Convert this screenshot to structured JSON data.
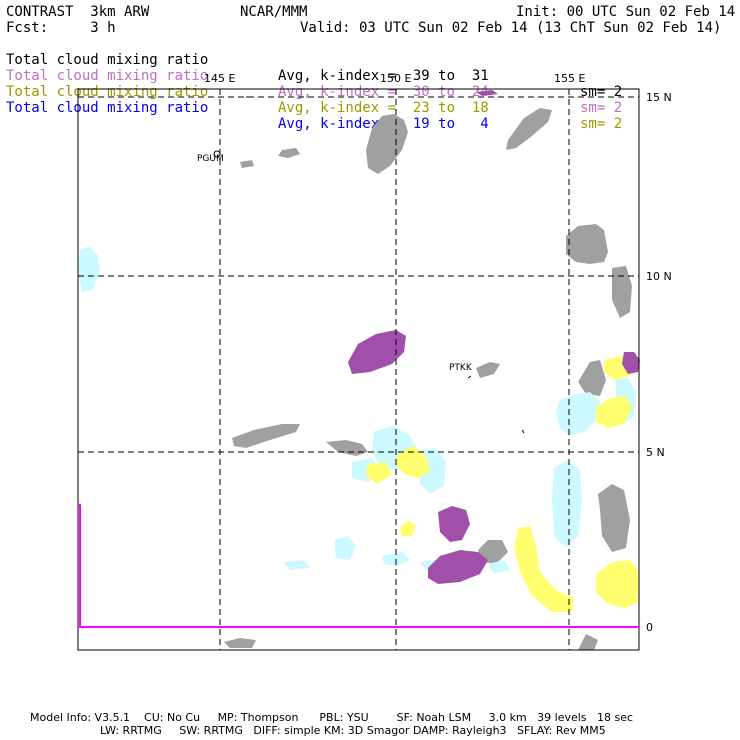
{
  "header": {
    "model": "CONTRAST  3km ARW",
    "org": "NCAR/MMM",
    "init": "Init: 00 UTC Sun 02 Feb 14",
    "fcst": "Fcst:     3 h",
    "valid": "Valid: 03 UTC Sun 02 Feb 14 (13 ChT Sun 02 Feb 14)"
  },
  "legend": [
    {
      "name": "Total cloud mixing ratio",
      "avg": "Avg, k-index =  39 to  31",
      "sm": "sm= 2",
      "color": "#000000"
    },
    {
      "name": "Total cloud mixing ratio",
      "avg": "Avg, k-index =  30 to  24",
      "sm": "sm= 2",
      "color": "#c070c0"
    },
    {
      "name": "Total cloud mixing ratio",
      "avg": "Avg, k-index =  23 to  18",
      "sm": "sm= 2",
      "color": "#9a9a00"
    },
    {
      "name": "Total cloud mixing ratio",
      "avg": "Avg, k-index =  19 to   4",
      "sm": "",
      "color": "#0000ff"
    }
  ],
  "map": {
    "lon_labels": [
      "145 E",
      "150 E",
      "155 E"
    ],
    "lat_labels": [
      "15 N",
      "10 N",
      "5 N",
      "0"
    ],
    "stations": [
      "PGUM",
      "PTKK"
    ],
    "colors": {
      "gray": "#a0a0a0",
      "purple": "#a050a8",
      "yellow": "#ffff70",
      "cyan": "#ccf8ff",
      "magenta_line": "#ff00ff"
    }
  },
  "footer": {
    "line1": "Model Info: V3.5.1    CU: No Cu     MP: Thompson      PBL: YSU        SF: Noah LSM     3.0 km   39 levels   18 sec",
    "line2": "LW: RRTMG     SW: RRTMG   DIFF: simple KM: 3D Smagor DAMP: Rayleigh3   SFLAY: Rev MM5"
  }
}
